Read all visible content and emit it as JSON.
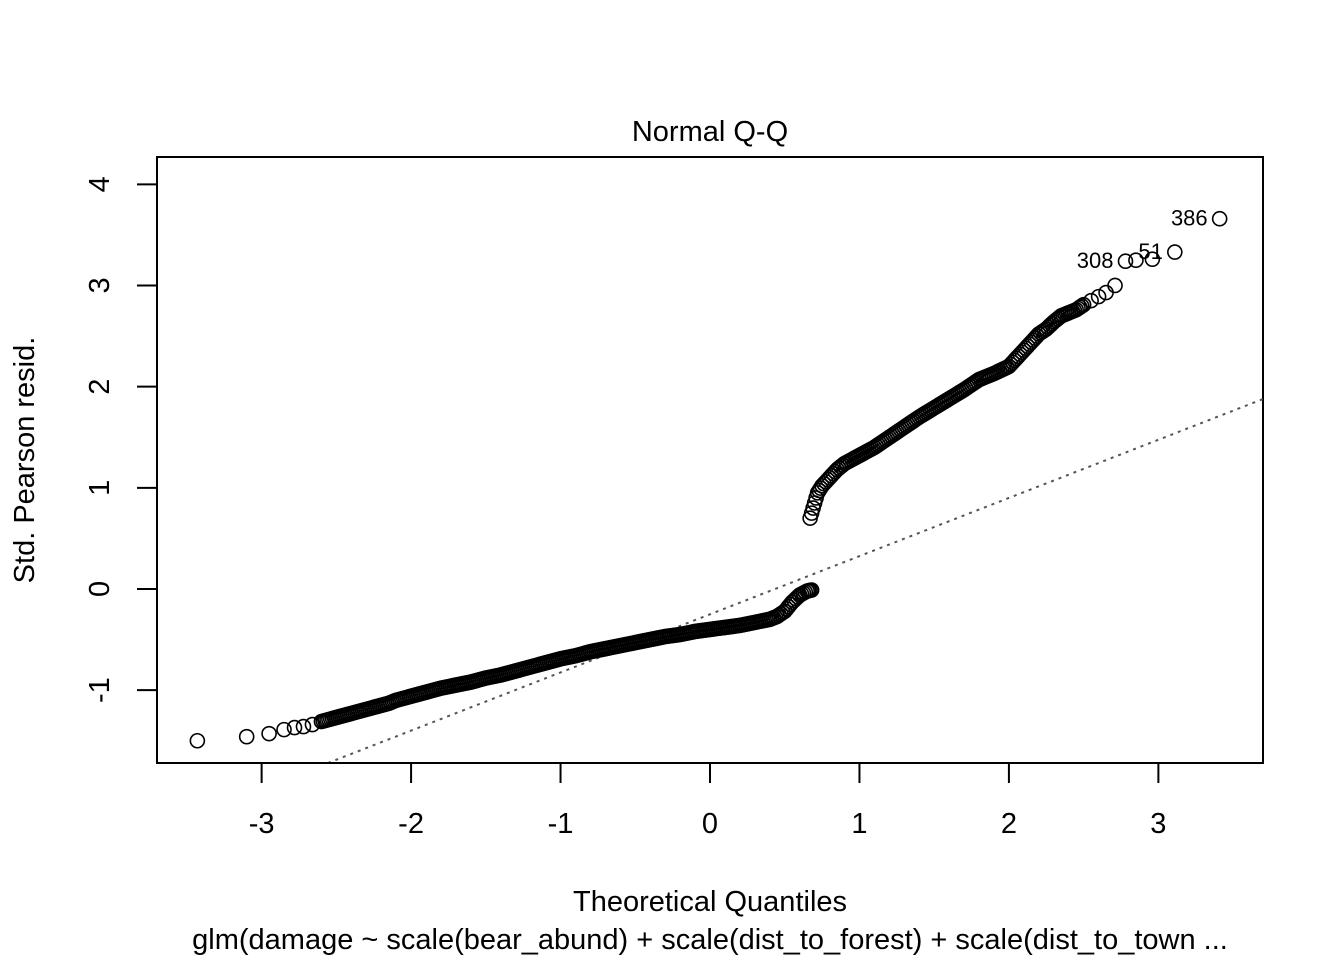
{
  "chart_data": {
    "type": "scatter",
    "title": "Normal Q-Q",
    "xlabel": "Theoretical Quantiles",
    "ylabel": "Std. Pearson resid.",
    "subtitle": "glm(damage ~ scale(bear_abund) + scale(dist_to_forest) + scale(dist_to_town ...",
    "xlim": [
      -3.7,
      3.7
    ],
    "ylim": [
      -1.72,
      4.27
    ],
    "xticks": [
      -3,
      -2,
      -1,
      0,
      1,
      2,
      3
    ],
    "xtick_labels": [
      "-3",
      "-2",
      "-1",
      "0",
      "1",
      "2",
      "3"
    ],
    "yticks": [
      -1,
      0,
      1,
      2,
      3,
      4
    ],
    "ytick_labels": [
      "-1",
      "0",
      "1",
      "2",
      "3",
      "4"
    ],
    "grid": false,
    "reference_line": {
      "slope": 0.575,
      "intercept": -0.25,
      "style": "dotted",
      "color": "#555555"
    },
    "lower_branch": {
      "x_range": [
        -3.43,
        0.68
      ],
      "x": [
        -3.43,
        -3.1,
        -2.95,
        -2.85,
        -2.78,
        -2.72,
        -2.66,
        -2.6,
        -2.55,
        -2.5,
        -2.45,
        -2.4,
        -2.35,
        -2.3,
        -2.25,
        -2.2,
        -2.15,
        -2.1,
        -2.05,
        -2.0,
        -1.95,
        -1.9,
        -1.85,
        -1.8,
        -1.7,
        -1.6,
        -1.5,
        -1.4,
        -1.3,
        -1.2,
        -1.1,
        -1.0,
        -0.9,
        -0.8,
        -0.7,
        -0.6,
        -0.5,
        -0.4,
        -0.3,
        -0.2,
        -0.1,
        0.0,
        0.1,
        0.2,
        0.3,
        0.4,
        0.45,
        0.5,
        0.55,
        0.6,
        0.65,
        0.68
      ],
      "y": [
        -1.5,
        -1.46,
        -1.43,
        -1.39,
        -1.37,
        -1.36,
        -1.34,
        -1.31,
        -1.29,
        -1.27,
        -1.25,
        -1.23,
        -1.21,
        -1.19,
        -1.17,
        -1.15,
        -1.13,
        -1.1,
        -1.08,
        -1.06,
        -1.04,
        -1.02,
        -1.0,
        -0.98,
        -0.95,
        -0.92,
        -0.88,
        -0.85,
        -0.81,
        -0.77,
        -0.73,
        -0.69,
        -0.66,
        -0.62,
        -0.59,
        -0.56,
        -0.53,
        -0.5,
        -0.47,
        -0.45,
        -0.42,
        -0.4,
        -0.38,
        -0.36,
        -0.33,
        -0.3,
        -0.27,
        -0.22,
        -0.13,
        -0.06,
        -0.02,
        -0.01
      ]
    },
    "upper_branch": {
      "x": [
        0.67,
        0.68,
        0.7,
        0.72,
        0.75,
        0.8,
        0.85,
        0.9,
        1.0,
        1.1,
        1.2,
        1.3,
        1.4,
        1.5,
        1.6,
        1.7,
        1.8,
        1.9,
        2.0,
        2.05,
        2.1,
        2.15,
        2.2,
        2.25,
        2.3,
        2.35,
        2.4,
        2.45,
        2.5,
        2.55,
        2.6,
        2.65,
        2.71,
        2.78,
        2.85,
        2.96,
        3.11,
        3.41
      ],
      "y": [
        0.7,
        0.75,
        0.85,
        0.95,
        1.02,
        1.1,
        1.18,
        1.24,
        1.32,
        1.4,
        1.5,
        1.6,
        1.7,
        1.79,
        1.88,
        1.97,
        2.07,
        2.13,
        2.2,
        2.28,
        2.36,
        2.44,
        2.52,
        2.57,
        2.64,
        2.7,
        2.73,
        2.76,
        2.81,
        2.85,
        2.89,
        2.93,
        3.0,
        3.24,
        3.25,
        3.26,
        3.33,
        3.66
      ]
    },
    "point_labels": [
      {
        "text": "386",
        "x": 3.41,
        "y": 3.66
      },
      {
        "text": "51",
        "x": 3.11,
        "y": 3.33
      },
      {
        "text": "308",
        "x": 2.78,
        "y": 3.24
      }
    ]
  }
}
